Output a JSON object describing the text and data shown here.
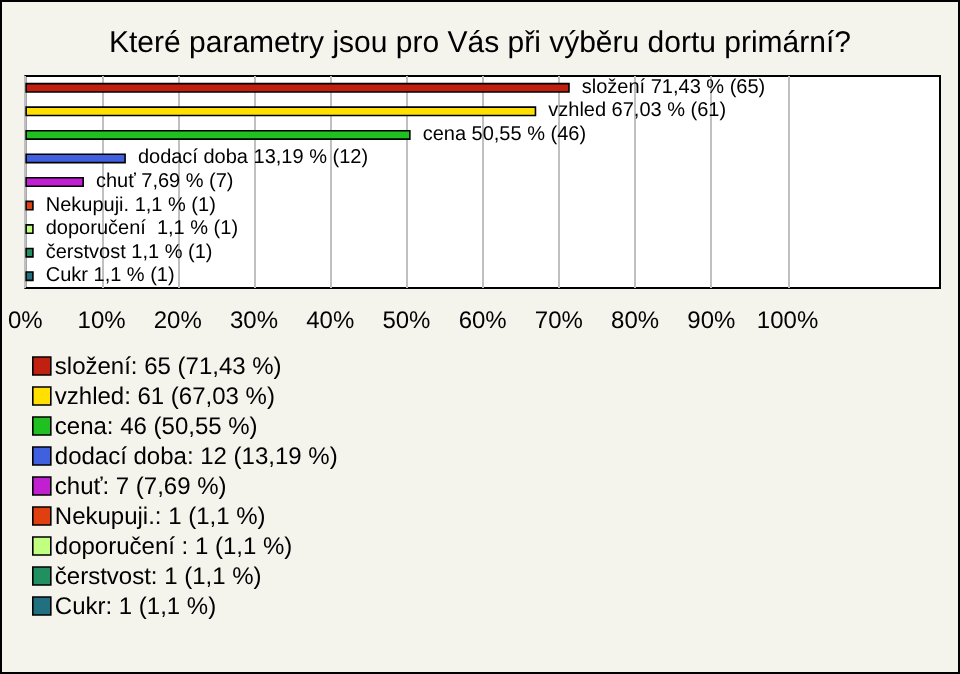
{
  "chart_data": {
    "type": "bar",
    "orientation": "horizontal",
    "title": "Které parametry jsou pro Vás při výběru dortu primární?",
    "categories": [
      null,
      null,
      null,
      null,
      null,
      null,
      null,
      null,
      null
    ],
    "xlim": [
      0,
      120
    ],
    "xticks": [
      {
        "value": 0,
        "label": "0%"
      },
      {
        "value": 10,
        "label": "10%"
      },
      {
        "value": 20,
        "label": "20%"
      },
      {
        "value": 30,
        "label": "30%"
      },
      {
        "value": 40,
        "label": "40%"
      },
      {
        "value": 50,
        "label": "50%"
      },
      {
        "value": 60,
        "label": "60%"
      },
      {
        "value": 70,
        "label": "70%"
      },
      {
        "value": 80,
        "label": "80%"
      },
      {
        "value": 90,
        "label": "90%"
      },
      {
        "value": 100,
        "label": "100%"
      }
    ],
    "grid": "x",
    "legend": "bottom left",
    "series": [
      {
        "name": "složení: 65 (71,43 %)",
        "color": "#c0200f",
        "values": [
          71.43,
          null,
          null,
          null,
          null,
          null,
          null,
          null,
          null
        ],
        "value_labels": [
          "složení 71,43 % (65)",
          null,
          null,
          null,
          null,
          null,
          null,
          null,
          null
        ]
      },
      {
        "name": "vzhled: 61 (67,03 %)",
        "color": "#ffe000",
        "values": [
          null,
          67.03,
          null,
          null,
          null,
          null,
          null,
          null,
          null
        ],
        "value_labels": [
          null,
          "vzhled 67,03 % (61)",
          null,
          null,
          null,
          null,
          null,
          null,
          null
        ]
      },
      {
        "name": "cena: 46 (50,55 %)",
        "color": "#20c020",
        "values": [
          null,
          null,
          50.55,
          null,
          null,
          null,
          null,
          null,
          null
        ],
        "value_labels": [
          null,
          null,
          "cena 50,55 % (46)",
          null,
          null,
          null,
          null,
          null,
          null
        ]
      },
      {
        "name": "dodací doba: 12 (13,19 %)",
        "color": "#4060e0",
        "values": [
          null,
          null,
          null,
          13.19,
          null,
          null,
          null,
          null,
          null
        ],
        "value_labels": [
          null,
          null,
          null,
          "dodací doba 13,19 % (12)",
          null,
          null,
          null,
          null,
          null
        ]
      },
      {
        "name": "chuť: 7 (7,69 %)",
        "color": "#c020d0",
        "values": [
          null,
          null,
          null,
          null,
          7.69,
          null,
          null,
          null,
          null
        ],
        "value_labels": [
          null,
          null,
          null,
          null,
          "chuť 7,69 % (7)",
          null,
          null,
          null,
          null
        ]
      },
      {
        "name": "Nekupuji.: 1 (1,1 %)",
        "color": "#e04010",
        "values": [
          null,
          null,
          null,
          null,
          null,
          1.1,
          null,
          null,
          null
        ],
        "value_labels": [
          null,
          null,
          null,
          null,
          null,
          "Nekupuji. 1,1 % (1)",
          null,
          null,
          null
        ]
      },
      {
        "name": "doporučení : 1 (1,1 %)",
        "color": "#c0ff80",
        "values": [
          null,
          null,
          null,
          null,
          null,
          null,
          1.1,
          null,
          null
        ],
        "value_labels": [
          null,
          null,
          null,
          null,
          null,
          null,
          "doporučení  1,1 % (1)",
          null,
          null
        ]
      },
      {
        "name": "čerstvost: 1 (1,1 %)",
        "color": "#209060",
        "values": [
          null,
          null,
          null,
          null,
          null,
          null,
          null,
          1.1,
          null
        ],
        "value_labels": [
          null,
          null,
          null,
          null,
          null,
          null,
          null,
          "čerstvost 1,1 % (1)",
          null
        ]
      },
      {
        "name": "Cukr: 1 (1,1 %)",
        "color": "#207080",
        "values": [
          null,
          null,
          null,
          null,
          null,
          null,
          null,
          null,
          1.1
        ],
        "value_labels": [
          null,
          null,
          null,
          null,
          null,
          null,
          null,
          null,
          "Cukr 1,1 % (1)"
        ]
      }
    ]
  }
}
